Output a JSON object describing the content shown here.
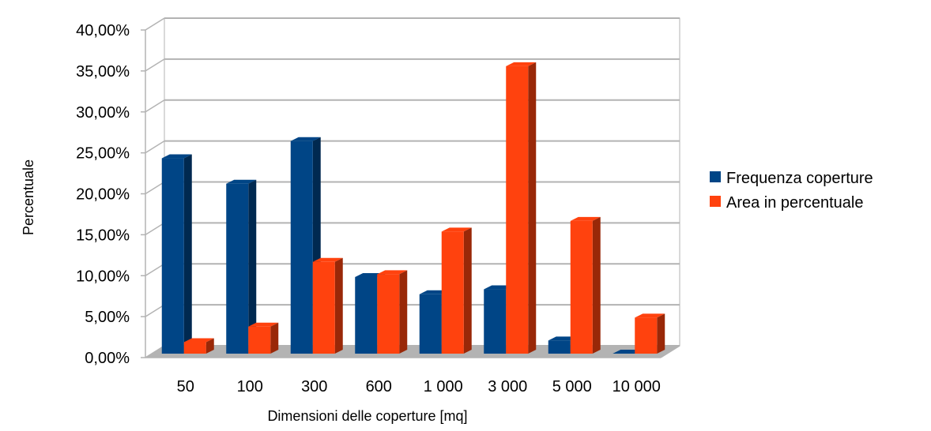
{
  "chart_data": {
    "type": "bar",
    "categories": [
      "50",
      "100",
      "300",
      "600",
      "1 000",
      "3 000",
      "5 000",
      "10 000"
    ],
    "series": [
      {
        "name": "Frequenza coperture",
        "values": [
          0.2385,
          0.2075,
          0.2595,
          0.0935,
          0.0725,
          0.0785,
          0.016,
          0.0
        ],
        "color": "#004586"
      },
      {
        "name": "Area in percentuale",
        "values": [
          0.014,
          0.033,
          0.112,
          0.097,
          0.149,
          0.351,
          0.162,
          0.044
        ],
        "color": "#ff420e"
      }
    ],
    "xlabel": "Dimensioni delle coperture [mq]",
    "ylabel": "Percentuale",
    "ylim": [
      0,
      0.4
    ],
    "yticks": [
      "0,00%",
      "5,00%",
      "10,00%",
      "15,00%",
      "20,00%",
      "25,00%",
      "30,00%",
      "35,00%",
      "40,00%"
    ],
    "grid": true,
    "legend_position": "right",
    "style": "3d"
  }
}
